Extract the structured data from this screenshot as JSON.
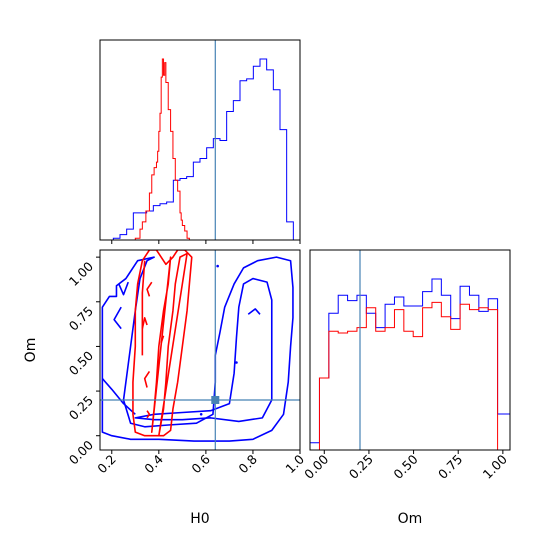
{
  "chart_data": {
    "type": "corner",
    "parameters": [
      "H0",
      "Om"
    ],
    "truths": {
      "H0": 0.64,
      "Om": 0.2
    },
    "colors": {
      "series_a": "#0000ff",
      "series_b": "#ff0000",
      "truth": "#4682b4"
    },
    "h0_hist": {
      "type": "histogram",
      "xlim": [
        0.15,
        1.0
      ],
      "tick_labels": [
        "0.2",
        "0.4",
        "0.6",
        "0.8",
        "1.0"
      ],
      "bin_edges": [
        0.15,
        0.1783,
        0.2067,
        0.235,
        0.2633,
        0.2917,
        0.32,
        0.3483,
        0.3767,
        0.405,
        0.4333,
        0.4617,
        0.49,
        0.5183,
        0.5467,
        0.575,
        0.6033,
        0.6317,
        0.66,
        0.6883,
        0.7167,
        0.745,
        0.7733,
        0.8017,
        0.83,
        0.8583,
        0.8867,
        0.915,
        0.9433,
        0.9717,
        1.0
      ],
      "series": [
        {
          "color": "blue",
          "values": [
            0.0,
            0.0,
            0.01,
            0.03,
            0.06,
            0.15,
            0.15,
            0.16,
            0.19,
            0.2,
            0.21,
            0.33,
            0.34,
            0.35,
            0.43,
            0.45,
            0.51,
            0.56,
            0.55,
            0.71,
            0.77,
            0.88,
            0.89,
            0.96,
            1.0,
            0.94,
            0.83,
            0.61,
            0.1,
            0.0
          ]
        }
      ],
      "series_b": {
        "color": "red",
        "x": [
          0.15,
          0.3,
          0.32,
          0.33,
          0.345,
          0.36,
          0.37,
          0.38,
          0.39,
          0.395,
          0.4,
          0.405,
          0.41,
          0.415,
          0.42,
          0.425,
          0.43,
          0.44,
          0.45,
          0.46,
          0.47,
          0.48,
          0.49,
          0.495,
          0.5,
          0.51,
          0.52,
          0.53,
          0.54
        ],
        "y": [
          0.0,
          0.01,
          0.06,
          0.1,
          0.16,
          0.26,
          0.36,
          0.4,
          0.43,
          0.49,
          0.6,
          0.7,
          0.9,
          1.0,
          0.91,
          0.98,
          0.87,
          0.72,
          0.6,
          0.45,
          0.33,
          0.27,
          0.15,
          0.11,
          0.08,
          0.05,
          0.01,
          0.0,
          0.0
        ]
      }
    },
    "om_hist": {
      "type": "histogram",
      "xlim": [
        -0.08,
        1.04
      ],
      "tick_labels": [
        "0.00",
        "0.25",
        "0.50",
        "0.75",
        "1.00"
      ],
      "bin_edges": [
        -0.08,
        -0.027,
        0.0255,
        0.078,
        0.1305,
        0.183,
        0.2355,
        0.288,
        0.3405,
        0.393,
        0.4455,
        0.498,
        0.5505,
        0.603,
        0.6555,
        0.708,
        0.7605,
        0.813,
        0.8655,
        0.918,
        0.9705,
        1.04
      ],
      "series": [
        {
          "color": "blue",
          "values": [
            0.04,
            0.4,
            0.76,
            0.86,
            0.83,
            0.86,
            0.76,
            0.68,
            0.81,
            0.85,
            0.8,
            0.8,
            0.88,
            0.95,
            0.86,
            0.73,
            0.91,
            0.86,
            0.77,
            0.84,
            0.2
          ]
        },
        {
          "color": "red",
          "values": [
            0.0,
            0.4,
            0.66,
            0.65,
            0.66,
            0.68,
            0.79,
            0.66,
            0.68,
            0.78,
            0.66,
            0.63,
            0.79,
            0.82,
            0.74,
            0.67,
            0.81,
            0.78,
            0.79,
            0.78,
            0.0
          ]
        }
      ]
    },
    "joint": {
      "type": "contour",
      "xlim": [
        0.15,
        1.0
      ],
      "ylim": [
        -0.08,
        1.04
      ],
      "x_tick_labels": [
        "0.2",
        "0.4",
        "0.6",
        "0.8",
        "1.0"
      ],
      "y_tick_labels": [
        "0.00",
        "0.25",
        "0.50",
        "0.75",
        "1.00"
      ],
      "truth_marker": [
        0.64,
        0.2
      ],
      "series": [
        {
          "color": "blue",
          "contours": [
            [
              [
                0.16,
                0.02
              ],
              [
                0.2,
                0.0
              ],
              [
                0.28,
                -0.02
              ],
              [
                0.4,
                -0.02
              ],
              [
                0.55,
                -0.03
              ],
              [
                0.7,
                -0.03
              ],
              [
                0.8,
                -0.02
              ],
              [
                0.88,
                0.03
              ],
              [
                0.93,
                0.12
              ],
              [
                0.95,
                0.3
              ],
              [
                0.96,
                0.5
              ],
              [
                0.97,
                0.66
              ],
              [
                0.97,
                0.83
              ],
              [
                0.96,
                0.98
              ],
              [
                0.9,
                1.0
              ],
              [
                0.82,
                0.98
              ],
              [
                0.76,
                0.94
              ],
              [
                0.72,
                0.85
              ],
              [
                0.68,
                0.72
              ],
              [
                0.66,
                0.58
              ],
              [
                0.64,
                0.45
              ],
              [
                0.64,
                0.3
              ],
              [
                0.63,
                0.12
              ],
              [
                0.56,
                0.07
              ],
              [
                0.44,
                0.06
              ],
              [
                0.34,
                0.05
              ],
              [
                0.28,
                0.07
              ],
              [
                0.25,
                0.2
              ],
              [
                0.26,
                0.3
              ],
              [
                0.28,
                0.5
              ],
              [
                0.3,
                0.7
              ],
              [
                0.32,
                0.88
              ],
              [
                0.35,
                0.98
              ],
              [
                0.38,
                1.0
              ],
              [
                0.31,
                0.98
              ],
              [
                0.26,
                0.88
              ],
              [
                0.22,
                0.84
              ],
              [
                0.22,
                0.78
              ],
              [
                0.19,
                0.78
              ],
              [
                0.16,
                0.72
              ]
            ],
            [
              [
                0.3,
                0.1
              ],
              [
                0.38,
                0.09
              ],
              [
                0.5,
                0.09
              ],
              [
                0.62,
                0.1
              ],
              [
                0.74,
                0.08
              ],
              [
                0.84,
                0.1
              ],
              [
                0.88,
                0.2
              ],
              [
                0.88,
                0.42
              ],
              [
                0.88,
                0.58
              ],
              [
                0.88,
                0.76
              ],
              [
                0.86,
                0.86
              ],
              [
                0.8,
                0.88
              ],
              [
                0.76,
                0.85
              ],
              [
                0.74,
                0.72
              ],
              [
                0.73,
                0.55
              ],
              [
                0.72,
                0.35
              ],
              [
                0.7,
                0.18
              ],
              [
                0.62,
                0.14
              ],
              [
                0.5,
                0.13
              ],
              [
                0.38,
                0.12
              ]
            ],
            [
              [
                0.23,
                0.85
              ],
              [
                0.25,
                0.79
              ],
              [
                0.27,
                0.86
              ]
            ],
            [
              [
                0.24,
                0.72
              ],
              [
                0.21,
                0.65
              ],
              [
                0.24,
                0.6
              ]
            ],
            [
              [
                0.78,
                0.68
              ],
              [
                0.81,
                0.71
              ],
              [
                0.83,
                0.68
              ]
            ],
            [
              [
                0.16,
                0.32
              ],
              [
                0.2,
                0.26
              ],
              [
                0.25,
                0.18
              ],
              [
                0.3,
                0.12
              ]
            ]
          ]
        },
        {
          "color": "red",
          "contours": [
            [
              [
                0.3,
                0.02
              ],
              [
                0.34,
                0.0
              ],
              [
                0.38,
                0.0
              ],
              [
                0.42,
                0.0
              ],
              [
                0.45,
                0.03
              ],
              [
                0.46,
                0.15
              ],
              [
                0.48,
                0.3
              ],
              [
                0.5,
                0.5
              ],
              [
                0.52,
                0.7
              ],
              [
                0.53,
                0.85
              ],
              [
                0.54,
                1.0
              ],
              [
                0.51,
                1.04
              ],
              [
                0.48,
                1.04
              ],
              [
                0.46,
                1.0
              ],
              [
                0.43,
                0.96
              ],
              [
                0.39,
                1.04
              ],
              [
                0.36,
                1.04
              ],
              [
                0.33,
                0.98
              ],
              [
                0.31,
                0.85
              ],
              [
                0.3,
                0.7
              ],
              [
                0.3,
                0.5
              ],
              [
                0.29,
                0.3
              ],
              [
                0.29,
                0.12
              ]
            ],
            [
              [
                0.4,
                0.0
              ],
              [
                0.42,
                0.15
              ],
              [
                0.43,
                0.3
              ],
              [
                0.44,
                0.5
              ],
              [
                0.46,
                0.7
              ],
              [
                0.47,
                0.85
              ],
              [
                0.49,
                1.0
              ],
              [
                0.52,
                1.02
              ]
            ],
            [
              [
                0.37,
                0.02
              ],
              [
                0.38,
                0.15
              ],
              [
                0.39,
                0.3
              ],
              [
                0.4,
                0.5
              ],
              [
                0.42,
                0.7
              ],
              [
                0.44,
                0.85
              ],
              [
                0.45,
                1.0
              ]
            ],
            [
              [
                0.34,
                0.98
              ],
              [
                0.33,
                0.8
              ],
              [
                0.33,
                0.6
              ],
              [
                0.33,
                0.45
              ]
            ],
            [
              [
                0.36,
                0.78
              ],
              [
                0.35,
                0.82
              ],
              [
                0.37,
                0.86
              ]
            ],
            [
              [
                0.33,
                0.6
              ],
              [
                0.34,
                0.66
              ],
              [
                0.35,
                0.62
              ]
            ],
            [
              [
                0.35,
                0.27
              ],
              [
                0.34,
                0.32
              ],
              [
                0.36,
                0.36
              ]
            ],
            [
              [
                0.35,
                0.14
              ],
              [
                0.36,
                0.12
              ],
              [
                0.35,
                0.1
              ]
            ],
            [
              [
                0.41,
                0.52
              ],
              [
                0.42,
                0.56
              ]
            ]
          ]
        }
      ],
      "small_marks": [
        {
          "color": "blue",
          "at": [
            0.58,
            0.12
          ]
        },
        {
          "color": "blue",
          "at": [
            0.65,
            0.95
          ]
        },
        {
          "color": "blue",
          "at": [
            0.73,
            0.41
          ]
        }
      ]
    },
    "x_labels": [
      "H0",
      "Om"
    ],
    "y_labels": [
      "Om"
    ]
  }
}
